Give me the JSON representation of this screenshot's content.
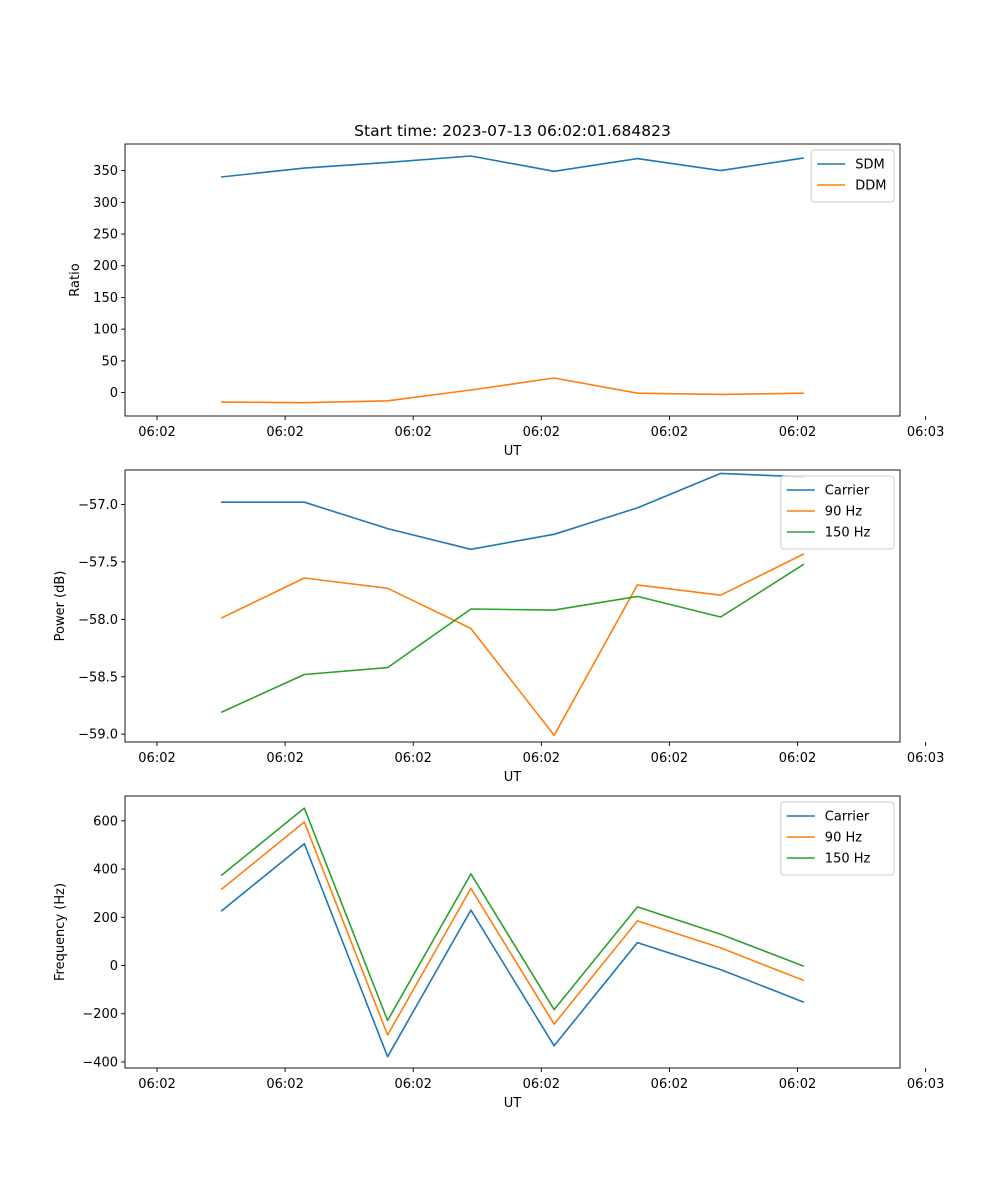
{
  "figure_title": "Start time: 2023-07-13 06:02:01.684823",
  "chart_data": [
    {
      "type": "line",
      "title": "Start time: 2023-07-13 06:02:01.684823",
      "xlabel": "UT",
      "ylabel": "Ratio",
      "x_tick_labels": [
        "06:02",
        "06:02",
        "06:02",
        "06:02",
        "06:02",
        "06:02",
        "06:03"
      ],
      "y_ticks": [
        0,
        50,
        100,
        150,
        200,
        250,
        300,
        350
      ],
      "y_tick_labels": [
        "0",
        "50",
        "100",
        "150",
        "200",
        "250",
        "300",
        "350"
      ],
      "xlim": [
        -0.25,
        5.8
      ],
      "ylim": [
        -37,
        392
      ],
      "x": [
        0.5,
        1.15,
        1.8,
        2.45,
        3.1,
        3.75,
        4.4,
        5.05
      ],
      "legend_position": "top-right",
      "series": [
        {
          "name": "SDM",
          "color": "#1f77b4",
          "values": [
            340,
            354,
            363,
            373,
            349,
            369,
            350,
            370
          ]
        },
        {
          "name": "DDM",
          "color": "#ff7f0e",
          "values": [
            -15,
            -16,
            -13,
            4,
            23,
            -1,
            -3,
            -1
          ]
        }
      ]
    },
    {
      "type": "line",
      "title": "",
      "xlabel": "UT",
      "ylabel": "Power (dB)",
      "x_tick_labels": [
        "06:02",
        "06:02",
        "06:02",
        "06:02",
        "06:02",
        "06:02",
        "06:03"
      ],
      "y_ticks": [
        -59.0,
        -58.5,
        -58.0,
        -57.5,
        -57.0
      ],
      "y_tick_labels": [
        "−59.0",
        "−58.5",
        "−58.0",
        "−57.5",
        "−57.0"
      ],
      "xlim": [
        -0.25,
        5.8
      ],
      "ylim": [
        -59.068,
        -56.7
      ],
      "x": [
        0.5,
        1.15,
        1.8,
        2.45,
        3.1,
        3.75,
        4.4,
        5.05
      ],
      "legend_position": "top-right",
      "series": [
        {
          "name": "Carrier",
          "color": "#1f77b4",
          "values": [
            -56.98,
            -56.98,
            -57.21,
            -57.39,
            -57.26,
            -57.03,
            -56.73,
            -56.76
          ]
        },
        {
          "name": "90 Hz",
          "color": "#ff7f0e",
          "values": [
            -57.99,
            -57.64,
            -57.73,
            -58.08,
            -59.01,
            -57.7,
            -57.79,
            -57.43
          ]
        },
        {
          "name": "150 Hz",
          "color": "#2ca02c",
          "values": [
            -58.81,
            -58.48,
            -58.42,
            -57.91,
            -57.92,
            -57.8,
            -57.98,
            -57.52
          ]
        }
      ]
    },
    {
      "type": "line",
      "title": "",
      "xlabel": "UT",
      "ylabel": "Frequency (Hz)",
      "x_tick_labels": [
        "06:02",
        "06:02",
        "06:02",
        "06:02",
        "06:02",
        "06:02",
        "06:03"
      ],
      "y_ticks": [
        -400,
        -200,
        0,
        200,
        400,
        600
      ],
      "y_tick_labels": [
        "−400",
        "−200",
        "0",
        "200",
        "400",
        "600"
      ],
      "xlim": [
        -0.25,
        5.8
      ],
      "ylim": [
        -425,
        703
      ],
      "x": [
        0.5,
        1.15,
        1.8,
        2.45,
        3.1,
        3.75,
        4.4,
        5.05
      ],
      "legend_position": "top-right",
      "series": [
        {
          "name": "Carrier",
          "color": "#1f77b4",
          "values": [
            225,
            505,
            -378,
            230,
            -333,
            95,
            -17,
            -152
          ]
        },
        {
          "name": "90 Hz",
          "color": "#ff7f0e",
          "values": [
            315,
            595,
            -288,
            320,
            -243,
            185,
            73,
            -62
          ]
        },
        {
          "name": "150 Hz",
          "color": "#2ca02c",
          "values": [
            373,
            653,
            -228,
            380,
            -183,
            243,
            130,
            -3
          ]
        }
      ]
    }
  ]
}
